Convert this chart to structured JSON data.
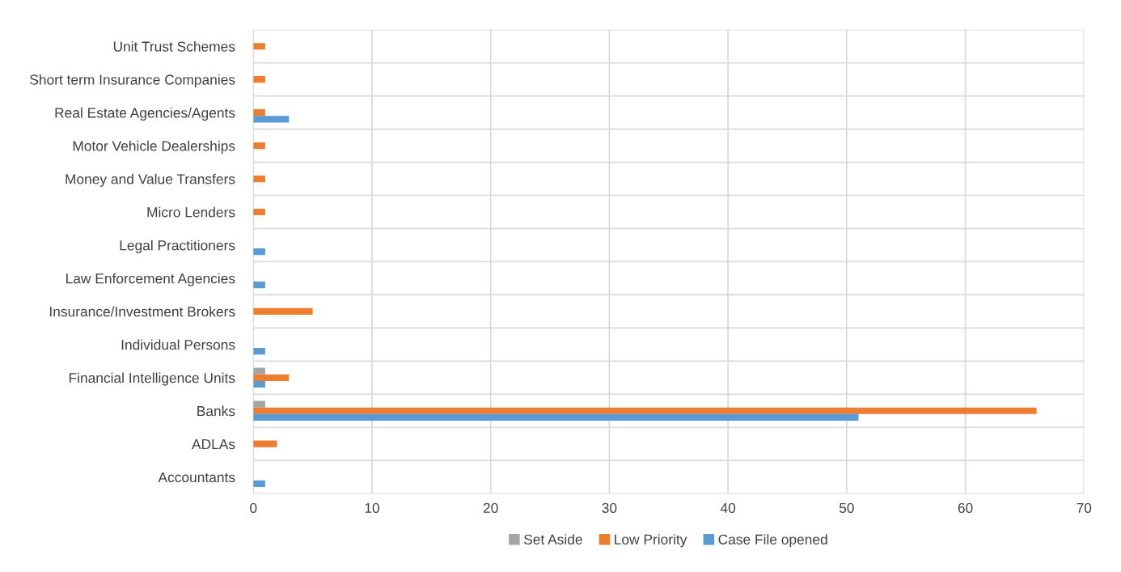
{
  "chart_data": {
    "type": "bar",
    "orientation": "horizontal",
    "categories": [
      "Unit Trust Schemes",
      "Short term Insurance Companies",
      "Real Estate Agencies/Agents",
      "Motor Vehicle Dealerships",
      "Money and Value Transfers",
      "Micro Lenders",
      "Legal Practitioners",
      "Law Enforcement Agencies",
      "Insurance/Investment Brokers",
      "Individual Persons",
      "Financial Intelligence Units",
      "Banks",
      "ADLAs",
      "Accountants"
    ],
    "series": [
      {
        "name": "Set Aside",
        "color": "#a5a5a5",
        "values": [
          null,
          null,
          null,
          null,
          null,
          null,
          null,
          null,
          null,
          null,
          1,
          1,
          null,
          null
        ]
      },
      {
        "name": "Low Priority",
        "color": "#ed7d31",
        "values": [
          1,
          1,
          1,
          1,
          1,
          1,
          null,
          null,
          5,
          null,
          3,
          66,
          2,
          null
        ]
      },
      {
        "name": "Case File opened",
        "color": "#5b9bd5",
        "values": [
          null,
          null,
          3,
          null,
          null,
          null,
          1,
          1,
          null,
          1,
          1,
          51,
          null,
          1
        ]
      }
    ],
    "xlim": [
      0,
      70
    ],
    "xticks": [
      0,
      10,
      20,
      30,
      40,
      50,
      60,
      70
    ],
    "grid": true,
    "legend": "bottom"
  }
}
